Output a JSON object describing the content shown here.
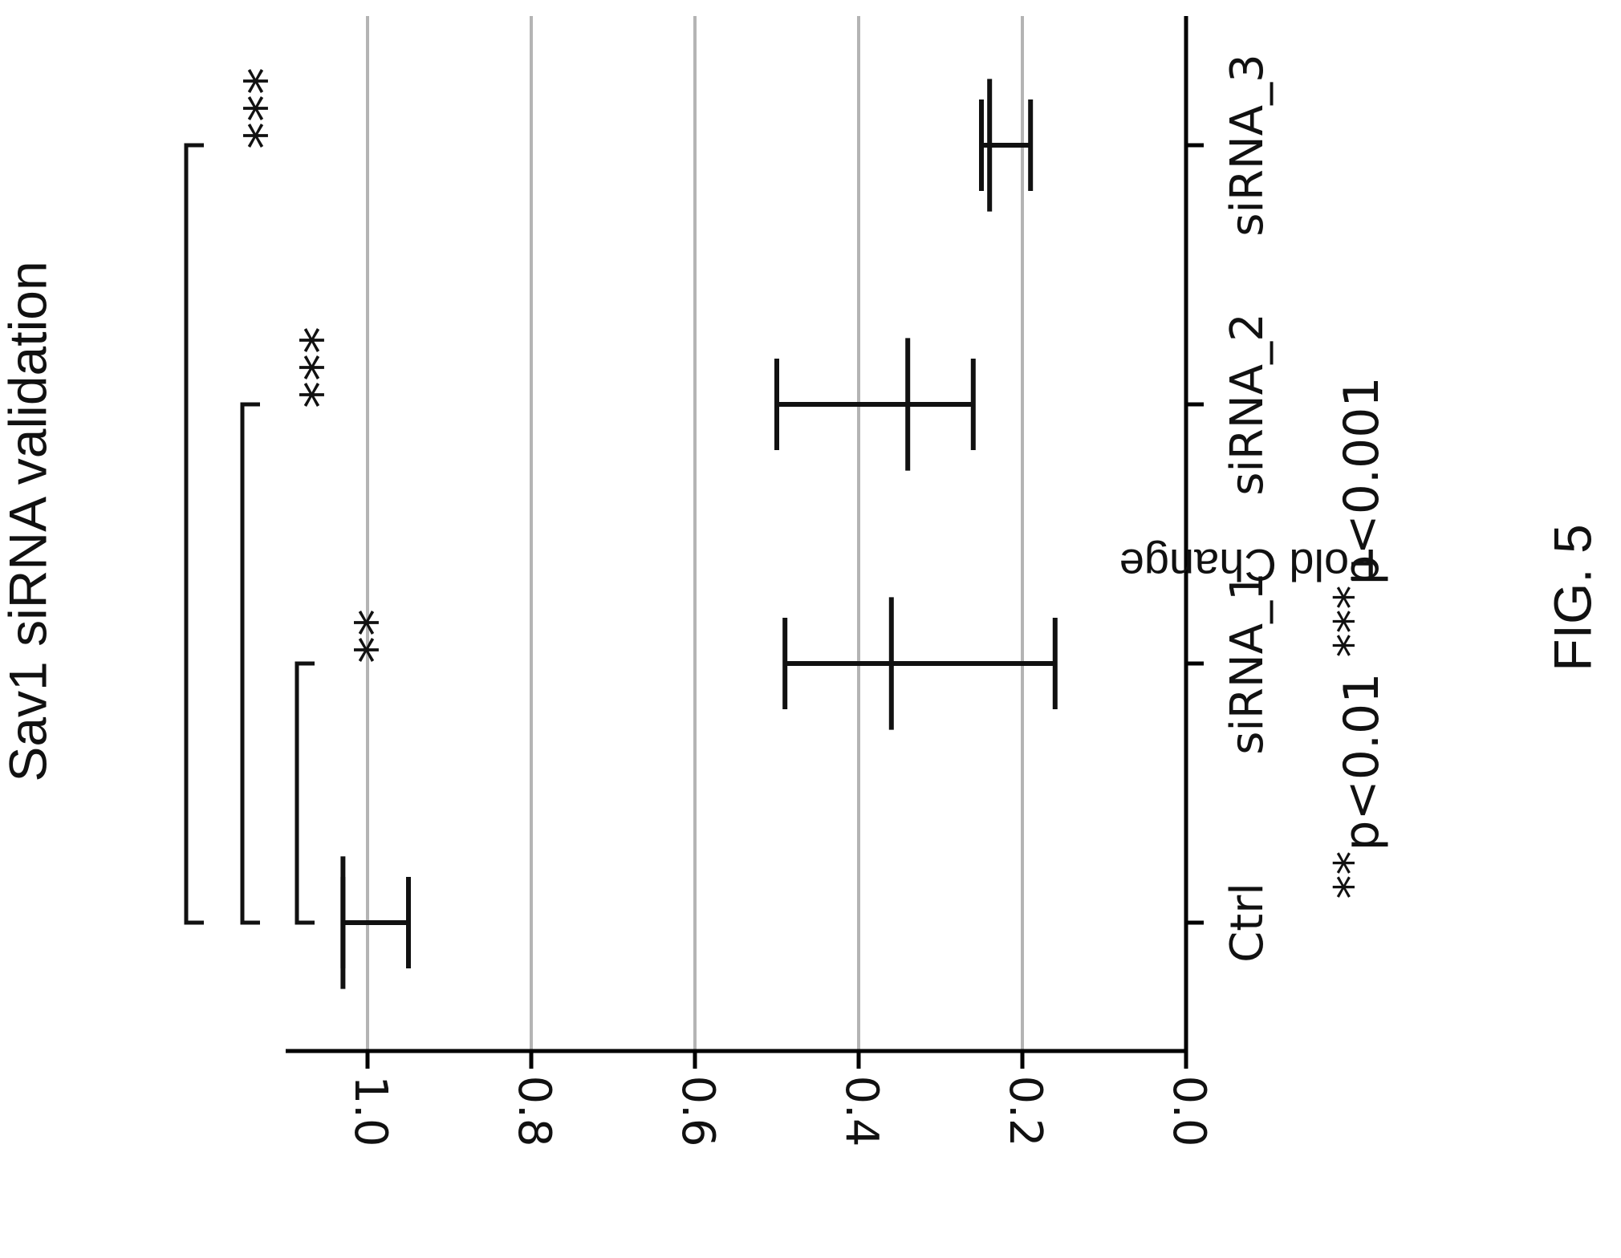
{
  "figure": {
    "label": "FIG. 5",
    "footnote": {
      "sig1_stars": "**",
      "sig1_text": "p<0.01",
      "sig2_stars": "***",
      "sig2_text": "p<0.001"
    }
  },
  "chart_data": {
    "type": "scatter",
    "title": "Sav1 siRNA validation",
    "xlabel": "",
    "ylabel": "Fold Change",
    "categories": [
      "Ctrl",
      "siRNA_1",
      "siRNA_2",
      "siRNA_3"
    ],
    "ylim": [
      0,
      1.1
    ],
    "yticks": [
      0.0,
      0.2,
      0.4,
      0.6,
      0.8,
      1.0
    ],
    "ytick_labels": [
      "0.0",
      "0.2",
      "0.4",
      "0.6",
      "0.8",
      "1.0"
    ],
    "grid": true,
    "gridlines": [
      0.2,
      0.4,
      0.6,
      0.8,
      1.0
    ],
    "points": [
      {
        "category": "Ctrl",
        "mean": 1.03,
        "lower": 0.95,
        "upper": 1.03
      },
      {
        "category": "siRNA_1",
        "mean": 0.36,
        "lower": 0.16,
        "upper": 0.49
      },
      {
        "category": "siRNA_2",
        "mean": 0.34,
        "lower": 0.26,
        "upper": 0.5
      },
      {
        "category": "siRNA_3",
        "mean": 0.24,
        "lower": 0.19,
        "upper": 0.25
      }
    ],
    "significance": [
      {
        "from": "Ctrl",
        "to": "siRNA_1",
        "label": "**"
      },
      {
        "from": "Ctrl",
        "to": "siRNA_2",
        "label": "***"
      },
      {
        "from": "Ctrl",
        "to": "siRNA_3",
        "label": "***"
      }
    ],
    "colors": {
      "axis": "#000000",
      "grid": "#b4b4b4",
      "marks": "#111111"
    }
  }
}
